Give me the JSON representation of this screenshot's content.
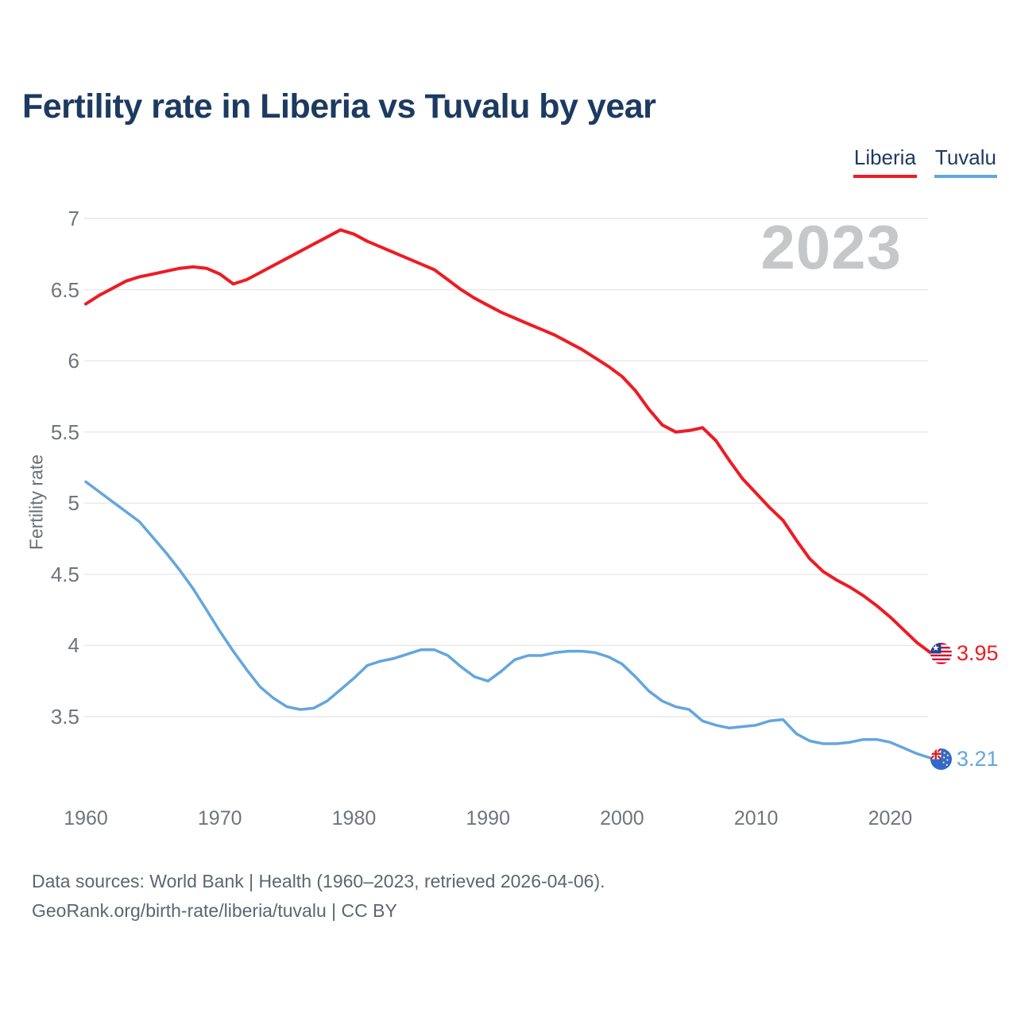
{
  "title": "Fertility rate in Liberia vs Tuvalu by year",
  "legend": {
    "items": [
      {
        "label": "Liberia",
        "color": "#ed1c24"
      },
      {
        "label": "Tuvalu",
        "color": "#64a6dc"
      }
    ]
  },
  "watermark": "2023",
  "footer": {
    "line1": "Data sources: World Bank | Health (1960–2023, retrieved 2026-04-06).",
    "line2": "GeoRank.org/birth-rate/liberia/tuvalu | CC BY"
  },
  "chart_data": {
    "type": "line",
    "title": "Fertility rate in Liberia vs Tuvalu by year",
    "xlabel": "",
    "ylabel": "Fertility rate",
    "xlim": [
      1960,
      2023
    ],
    "ylim": [
      3.5,
      7
    ],
    "grid": "horizontal",
    "legend_position": "top-right",
    "x_ticks": [
      1960,
      1970,
      1980,
      1990,
      2000,
      2010,
      2020
    ],
    "y_ticks": [
      3.5,
      4,
      4.5,
      5,
      5.5,
      6,
      6.5,
      7
    ],
    "x": [
      1960,
      1961,
      1962,
      1963,
      1964,
      1965,
      1966,
      1967,
      1968,
      1969,
      1970,
      1971,
      1972,
      1973,
      1974,
      1975,
      1976,
      1977,
      1978,
      1979,
      1980,
      1981,
      1982,
      1983,
      1984,
      1985,
      1986,
      1987,
      1988,
      1989,
      1990,
      1991,
      1992,
      1993,
      1994,
      1995,
      1996,
      1997,
      1998,
      1999,
      2000,
      2001,
      2002,
      2003,
      2004,
      2005,
      2006,
      2007,
      2008,
      2009,
      2010,
      2011,
      2012,
      2013,
      2014,
      2015,
      2016,
      2017,
      2018,
      2019,
      2020,
      2021,
      2022,
      2023
    ],
    "series": [
      {
        "name": "Liberia",
        "color": "#ed1c24",
        "width": 4,
        "values": [
          6.4,
          6.46,
          6.51,
          6.56,
          6.59,
          6.61,
          6.63,
          6.65,
          6.66,
          6.65,
          6.61,
          6.54,
          6.57,
          6.62,
          6.67,
          6.72,
          6.77,
          6.82,
          6.87,
          6.92,
          6.89,
          6.84,
          6.8,
          6.76,
          6.72,
          6.68,
          6.64,
          6.57,
          6.5,
          6.44,
          6.39,
          6.34,
          6.3,
          6.26,
          6.22,
          6.18,
          6.13,
          6.08,
          6.02,
          5.96,
          5.89,
          5.79,
          5.66,
          5.55,
          5.5,
          5.51,
          5.53,
          5.44,
          5.3,
          5.17,
          5.07,
          4.97,
          4.88,
          4.74,
          4.61,
          4.52,
          4.46,
          4.41,
          4.35,
          4.28,
          4.2,
          4.11,
          4.02,
          3.95
        ]
      },
      {
        "name": "Tuvalu",
        "color": "#64a6dc",
        "width": 3.5,
        "values": [
          5.15,
          5.08,
          5.01,
          4.94,
          4.87,
          4.76,
          4.65,
          4.53,
          4.4,
          4.25,
          4.1,
          3.96,
          3.83,
          3.71,
          3.63,
          3.57,
          3.55,
          3.56,
          3.61,
          3.69,
          3.77,
          3.86,
          3.89,
          3.91,
          3.94,
          3.97,
          3.97,
          3.93,
          3.85,
          3.78,
          3.75,
          3.82,
          3.9,
          3.93,
          3.93,
          3.95,
          3.96,
          3.96,
          3.95,
          3.92,
          3.87,
          3.78,
          3.68,
          3.61,
          3.57,
          3.55,
          3.47,
          3.44,
          3.42,
          3.43,
          3.44,
          3.47,
          3.48,
          3.38,
          3.33,
          3.31,
          3.31,
          3.32,
          3.34,
          3.34,
          3.32,
          3.28,
          3.24,
          3.21
        ]
      }
    ],
    "end_labels": [
      {
        "series": "Liberia",
        "value": "3.95",
        "color": "#ed1c24"
      },
      {
        "series": "Tuvalu",
        "value": "3.21",
        "color": "#64a6dc"
      }
    ]
  }
}
